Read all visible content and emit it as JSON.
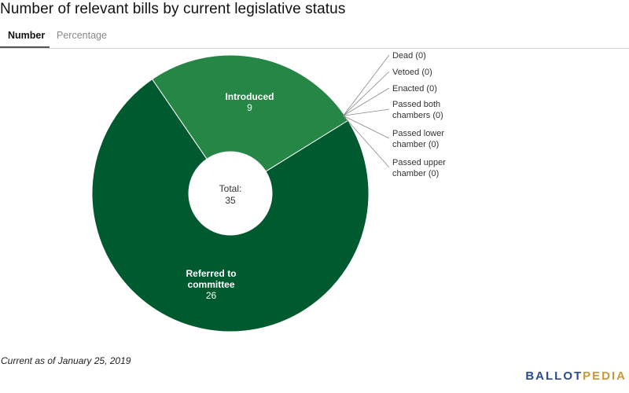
{
  "header": {
    "title": "Number of relevant bills by current legislative status"
  },
  "tabs": [
    {
      "label": "Number",
      "active": true
    },
    {
      "label": "Percentage",
      "active": false
    }
  ],
  "center_label": {
    "line1": "Total:",
    "line2": "35"
  },
  "footer": {
    "note": "Current as of January 25, 2019",
    "logo_part1": "BALLOT",
    "logo_part2": "PEDIA"
  },
  "colors": {
    "referred": "#005a30",
    "introduced": "#268645",
    "leader": "#888888",
    "small_label": "#333333",
    "logo_blue": "#2a4b8f",
    "logo_gold": "#c8993a"
  },
  "chart_data": {
    "type": "pie",
    "donut": true,
    "total": 35,
    "slices": [
      {
        "label_lines": [
          "Referred to",
          "committee"
        ],
        "value": 26,
        "color": "#005a30",
        "label_position": "inside"
      },
      {
        "label_lines": [
          "Introduced"
        ],
        "value": 9,
        "color": "#268645",
        "label_position": "inside"
      },
      {
        "label_lines": [
          "Dead (0)"
        ],
        "value": 0,
        "label_position": "outside"
      },
      {
        "label_lines": [
          "Vetoed (0)"
        ],
        "value": 0,
        "label_position": "outside"
      },
      {
        "label_lines": [
          "Enacted (0)"
        ],
        "value": 0,
        "label_position": "outside"
      },
      {
        "label_lines": [
          "Passed both",
          "chambers (0)"
        ],
        "value": 0,
        "label_position": "outside"
      },
      {
        "label_lines": [
          "Passed lower",
          "chamber (0)"
        ],
        "value": 0,
        "label_position": "outside"
      },
      {
        "label_lines": [
          "Passed upper",
          "chamber (0)"
        ],
        "value": 0,
        "label_position": "outside"
      }
    ]
  }
}
